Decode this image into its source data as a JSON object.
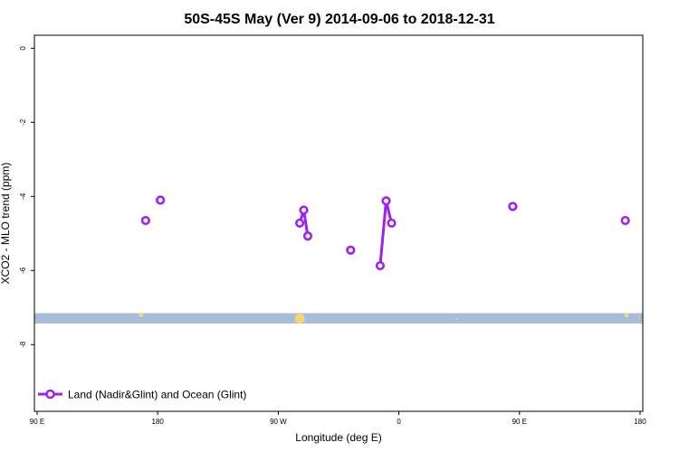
{
  "chart_data": {
    "type": "scatter",
    "title": "50S-45S May (Ver 9)   2014-09-06 to 2018-12-31",
    "xlabel": "Longitude (deg E)",
    "ylabel": "XCO2 - MLO trend (ppm)",
    "xlim": [
      90,
      450
    ],
    "ylim": [
      -9.8,
      0.35
    ],
    "x_ticks": [
      {
        "value": 90,
        "label": "90 E"
      },
      {
        "value": 180,
        "label": "180"
      },
      {
        "value": 270,
        "label": "90 W"
      },
      {
        "value": 360,
        "label": "0"
      },
      {
        "value": 450,
        "label": "90 E"
      },
      {
        "value": 540,
        "label": "180"
      }
    ],
    "y_ticks": [
      {
        "value": 0,
        "label": "0"
      },
      {
        "value": -2,
        "label": "-2"
      },
      {
        "value": -4,
        "label": "-4"
      },
      {
        "value": -6,
        "label": "-6"
      },
      {
        "value": -8,
        "label": "-8"
      }
    ],
    "series": [
      {
        "name": "Land (Nadir&Glint) and Ocean (Glint)",
        "color": "#a020f0",
        "segments": [
          [
            {
              "x": 171,
              "y": -4.65
            }
          ],
          [
            {
              "x": 182,
              "y": -4.1
            }
          ],
          [
            {
              "x": 286,
              "y": -4.72
            },
            {
              "x": 289,
              "y": -4.37
            },
            {
              "x": 292,
              "y": -5.07
            }
          ],
          [
            {
              "x": 324,
              "y": -5.45
            }
          ],
          [
            {
              "x": 346,
              "y": -5.87
            },
            {
              "x": 350.5,
              "y": -4.12
            },
            {
              "x": 354.5,
              "y": -4.72
            }
          ],
          [
            {
              "x": 445,
              "y": -4.27
            }
          ],
          [
            {
              "x": 529,
              "y": -4.65
            }
          ]
        ]
      }
    ],
    "band": {
      "y_from": -7.43,
      "y_to": -7.15,
      "color": "#a6bcd9"
    },
    "markers": {
      "color": "#f5d76e",
      "points": [
        {
          "x": 167.5,
          "y": -7.2,
          "size": 2.5
        },
        {
          "x": 286,
          "y": -7.3,
          "size": 5.5
        },
        {
          "x": 287.5,
          "y": -7.25,
          "size": 3
        },
        {
          "x": 530,
          "y": -7.2,
          "size": 2.5
        },
        {
          "x": 403,
          "y": -7.3,
          "size": 1
        }
      ]
    },
    "legend_position": "bottom-left",
    "grid": false
  }
}
